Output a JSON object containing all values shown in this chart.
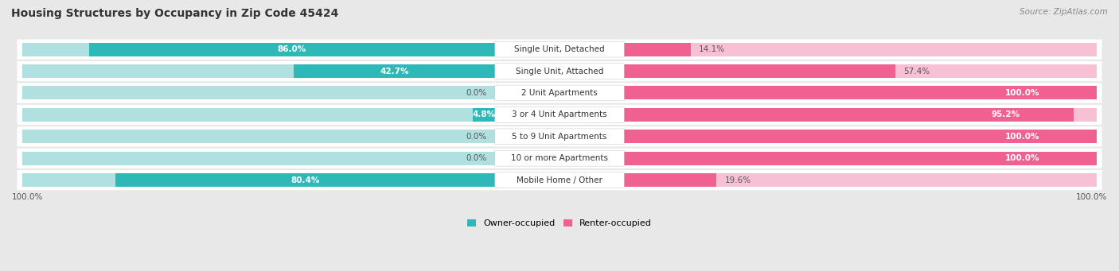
{
  "title": "Housing Structures by Occupancy in Zip Code 45424",
  "source": "Source: ZipAtlas.com",
  "categories": [
    "Single Unit, Detached",
    "Single Unit, Attached",
    "2 Unit Apartments",
    "3 or 4 Unit Apartments",
    "5 to 9 Unit Apartments",
    "10 or more Apartments",
    "Mobile Home / Other"
  ],
  "owner_pct": [
    86.0,
    42.7,
    0.0,
    4.8,
    0.0,
    0.0,
    80.4
  ],
  "renter_pct": [
    14.1,
    57.4,
    100.0,
    95.2,
    100.0,
    100.0,
    19.6
  ],
  "owner_color": "#2eb8b8",
  "renter_color": "#f06090",
  "owner_color_light": "#b0e0e0",
  "renter_color_light": "#f8c0d4",
  "bg_color": "#e8e8e8",
  "row_bg_color": "#ffffff",
  "title_fontsize": 10,
  "source_fontsize": 7.5,
  "label_fontsize": 7.5,
  "cat_fontsize": 7.5,
  "tick_fontsize": 7.5
}
